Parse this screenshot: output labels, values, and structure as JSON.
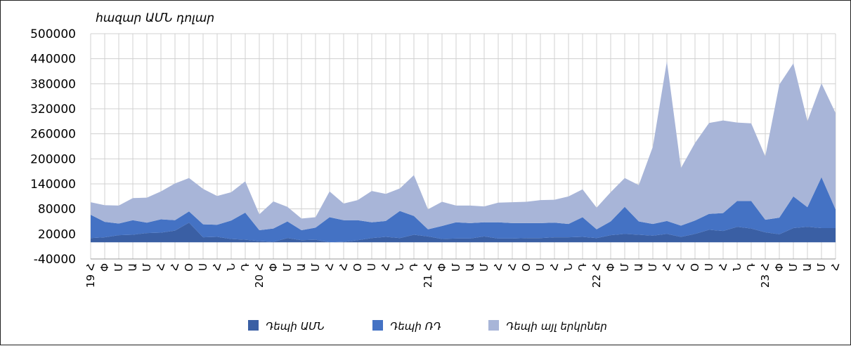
{
  "chart_data": {
    "type": "area",
    "stacked": true,
    "unit_label": "հազար ԱՄՆ դոլար",
    "ylim": [
      -40000,
      500000
    ],
    "yticks": [
      -40000,
      20000,
      80000,
      140000,
      200000,
      260000,
      320000,
      380000,
      440000,
      500000
    ],
    "ytick_labels": [
      "-40000",
      "20000",
      "80000",
      "140000",
      "200000",
      "260000",
      "320000",
      "380000",
      "440000",
      "500000"
    ],
    "grid": true,
    "legend_position": "bottom",
    "x": [
      "19-Հ",
      "19-Փ",
      "19-Մ",
      "19-Ա",
      "19-Մ",
      "19-Հ",
      "19-Հ",
      "19-Օ",
      "19-Ս",
      "19-Հ",
      "19-Ն",
      "19-Դ",
      "20-Հ",
      "20-Փ",
      "20-Մ",
      "20-Ա",
      "20-Մ",
      "20-Հ",
      "20-Հ",
      "20-Օ",
      "20-Ս",
      "20-Հ",
      "20-Ն",
      "20-Դ",
      "21-Հ",
      "21-Փ",
      "21-Մ",
      "21-Ա",
      "21-Մ",
      "21-Հ",
      "21-Հ",
      "21-Օ",
      "21-Ս",
      "21-Հ",
      "21-Ն",
      "21-Դ",
      "22-Հ",
      "22-Փ",
      "22-Մ",
      "22-Ա",
      "22-Մ",
      "22-Հ",
      "22-Հ",
      "22-Օ",
      "22-Ս",
      "22-Հ",
      "22-Ն",
      "22-Դ",
      "23-Հ",
      "23-Փ",
      "23-Մ",
      "23-Ա",
      "23-Մ",
      "23-Հ"
    ],
    "x_month_labels": [
      "Հ",
      "Փ",
      "Մ",
      "Ա",
      "Մ",
      "Հ",
      "Հ",
      "Օ",
      "Ս",
      "Հ",
      "Ն",
      "Դ",
      "Հ",
      "Փ",
      "Մ",
      "Ա",
      "Մ",
      "Հ",
      "Հ",
      "Օ",
      "Ս",
      "Հ",
      "Ն",
      "Դ",
      "Հ",
      "Փ",
      "Մ",
      "Ա",
      "Մ",
      "Հ",
      "Հ",
      "Օ",
      "Ս",
      "Հ",
      "Ն",
      "Դ",
      "Հ",
      "Փ",
      "Մ",
      "Ա",
      "Մ",
      "Հ",
      "Հ",
      "Օ",
      "Ս",
      "Հ",
      "Ն",
      "Դ",
      "Հ",
      "Փ",
      "Մ",
      "Ա",
      "Մ",
      "Հ"
    ],
    "x_year_labels": [
      {
        "index": 0,
        "label": "19"
      },
      {
        "index": 12,
        "label": "20"
      },
      {
        "index": 24,
        "label": "21"
      },
      {
        "index": 36,
        "label": "22"
      },
      {
        "index": 48,
        "label": "23"
      }
    ],
    "series": [
      {
        "name": "Դեպի ԱՄՆ",
        "color": "#3a5fa4",
        "values": [
          10000,
          12000,
          17000,
          18000,
          22000,
          23000,
          28000,
          47000,
          12000,
          13000,
          8000,
          6000,
          3000,
          1000,
          10000,
          5000,
          6000,
          0,
          1000,
          5000,
          10000,
          13000,
          10000,
          18000,
          14000,
          8000,
          9000,
          9000,
          14000,
          9000,
          9000,
          10000,
          10000,
          12000,
          12000,
          13000,
          10000,
          17000,
          20000,
          18000,
          16000,
          20000,
          13000,
          20000,
          30000,
          27000,
          37000,
          33000,
          24000,
          19000,
          34000,
          37000,
          34000,
          34000
        ]
      },
      {
        "name": "Դեպի ՌԴ",
        "color": "#4472c4",
        "values": [
          56000,
          37000,
          28000,
          35000,
          25000,
          32000,
          25000,
          27000,
          31000,
          29000,
          44000,
          65000,
          26000,
          32000,
          40000,
          24000,
          29000,
          60000,
          52000,
          48000,
          38000,
          38000,
          65000,
          45000,
          17000,
          31000,
          39000,
          37000,
          34000,
          39000,
          37000,
          36000,
          36000,
          35000,
          32000,
          47000,
          21000,
          33000,
          65000,
          32000,
          28000,
          31000,
          27000,
          32000,
          38000,
          43000,
          62000,
          66000,
          30000,
          40000,
          76000,
          47000,
          122000,
          45000
        ]
      },
      {
        "name": "Դեպի այլ երկրներ",
        "color": "#a8b5d8",
        "values": [
          30000,
          40000,
          43000,
          53000,
          60000,
          67000,
          88000,
          80000,
          85000,
          69000,
          68000,
          75000,
          38000,
          65000,
          35000,
          28000,
          25000,
          62000,
          40000,
          48000,
          75000,
          65000,
          54000,
          98000,
          48000,
          58000,
          40000,
          42000,
          38000,
          47000,
          50000,
          51000,
          55000,
          55000,
          66000,
          67000,
          52000,
          70000,
          69000,
          87000,
          185000,
          383000,
          138000,
          186000,
          218000,
          222000,
          188000,
          186000,
          152000,
          319000,
          319000,
          206000,
          225000,
          231000
        ]
      }
    ]
  }
}
